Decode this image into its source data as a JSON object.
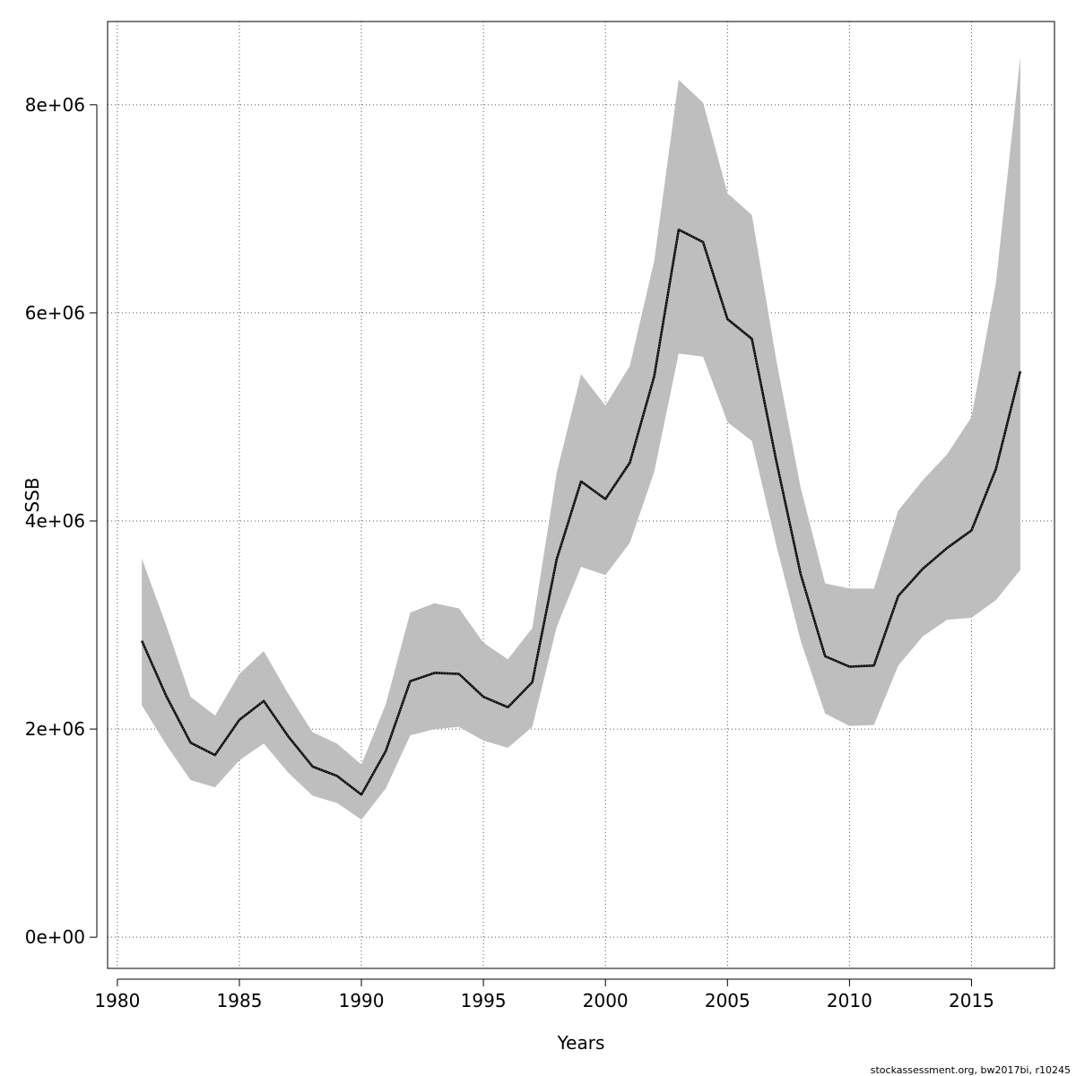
{
  "chart_data": {
    "type": "line",
    "title": "",
    "xlabel": "Years",
    "ylabel": "SSB",
    "xlim": [
      1979.6,
      2018.4
    ],
    "ylim": [
      -300000,
      8800000
    ],
    "x_ticks": [
      1980,
      1985,
      1990,
      1995,
      2000,
      2005,
      2010,
      2015
    ],
    "x_tick_labels": [
      "1980",
      "1985",
      "1990",
      "1995",
      "2000",
      "2005",
      "2010",
      "2015"
    ],
    "y_ticks": [
      0,
      2000000,
      4000000,
      6000000,
      8000000
    ],
    "y_tick_labels": [
      "0e+00",
      "2e+06",
      "4e+06",
      "6e+06",
      "8e+06"
    ],
    "grid": true,
    "x": [
      1981,
      1982,
      1983,
      1984,
      1985,
      1986,
      1987,
      1988,
      1989,
      1990,
      1991,
      1992,
      1993,
      1994,
      1995,
      1996,
      1997,
      1998,
      1999,
      2000,
      2001,
      2002,
      2003,
      2004,
      2005,
      2006,
      2007,
      2008,
      2009,
      2010,
      2011,
      2012,
      2013,
      2014,
      2015,
      2016,
      2017
    ],
    "series": [
      {
        "values": [
          2850000,
          2320000,
          1870000,
          1750000,
          2090000,
          2270000,
          1930000,
          1640000,
          1550000,
          1370000,
          1790000,
          2460000,
          2540000,
          2530000,
          2310000,
          2210000,
          2450000,
          3630000,
          4380000,
          4210000,
          4560000,
          5390000,
          6800000,
          6680000,
          5940000,
          5750000,
          4580000,
          3490000,
          2700000,
          2600000,
          2610000,
          3280000,
          3540000,
          3740000,
          3910000,
          4500000,
          5440000
        ],
        "lower": [
          2230000,
          1850000,
          1510000,
          1440000,
          1700000,
          1860000,
          1580000,
          1360000,
          1290000,
          1130000,
          1430000,
          1940000,
          2000000,
          2020000,
          1890000,
          1820000,
          2020000,
          2980000,
          3560000,
          3480000,
          3790000,
          4470000,
          5610000,
          5580000,
          4950000,
          4770000,
          3770000,
          2850000,
          2150000,
          2030000,
          2040000,
          2610000,
          2890000,
          3050000,
          3070000,
          3240000,
          3530000
        ],
        "upper": [
          3640000,
          3000000,
          2310000,
          2130000,
          2530000,
          2750000,
          2340000,
          1970000,
          1860000,
          1660000,
          2240000,
          3120000,
          3210000,
          3160000,
          2830000,
          2670000,
          2970000,
          4460000,
          5410000,
          5110000,
          5490000,
          6500000,
          8240000,
          8020000,
          7150000,
          6940000,
          5550000,
          4320000,
          3400000,
          3350000,
          3350000,
          4100000,
          4390000,
          4640000,
          5000000,
          6290000,
          8460000
        ]
      }
    ],
    "colors": {
      "band": "#bebebe",
      "line": "#000000",
      "grid": "#555555"
    }
  },
  "footer": {
    "credit": "stockassessment.org, bw2017bi, r10245"
  }
}
